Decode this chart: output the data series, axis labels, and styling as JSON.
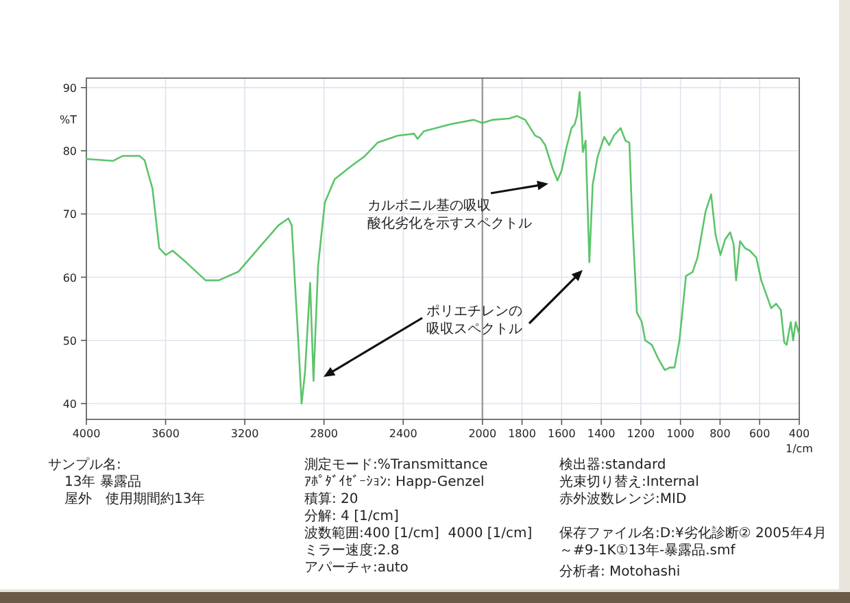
{
  "chart_data": {
    "type": "line",
    "xlabel": "1/cm",
    "ylabel": "%T",
    "grid": true,
    "xlim": [
      4000,
      400
    ],
    "xticks": [
      4000,
      3600,
      3200,
      2800,
      2400,
      2000,
      1800,
      1600,
      1400,
      1200,
      1000,
      800,
      600,
      400
    ],
    "ylim": [
      37.5,
      91.5
    ],
    "yticks": [
      40,
      50,
      60,
      70,
      80,
      90
    ],
    "ref_lines": [
      {
        "axis": "x",
        "value": 2000,
        "color": "#9a9a9a"
      }
    ],
    "series": [
      {
        "color": "#5cc46a",
        "x": [
          4000,
          3866,
          3816,
          3732,
          3706,
          3666,
          3632,
          3599,
          3565,
          3498,
          3398,
          3331,
          3231,
          3130,
          3030,
          2980,
          2963,
          2930,
          2913,
          2896,
          2870,
          2853,
          2830,
          2796,
          2746,
          2662,
          2596,
          2529,
          2428,
          2345,
          2328,
          2295,
          2161,
          2044,
          2000,
          1948,
          1866,
          1825,
          1784,
          1734,
          1707,
          1683,
          1650,
          1621,
          1600,
          1575,
          1550,
          1534,
          1522,
          1509,
          1501,
          1493,
          1479,
          1460,
          1443,
          1418,
          1385,
          1360,
          1336,
          1302,
          1278,
          1258,
          1245,
          1220,
          1195,
          1178,
          1145,
          1112,
          1079,
          1055,
          1030,
          1005,
          972,
          939,
          914,
          873,
          845,
          823,
          798,
          774,
          749,
          732,
          719,
          699,
          674,
          650,
          617,
          592,
          567,
          542,
          517,
          493,
          476,
          464,
          443,
          431,
          418,
          402
        ],
        "values": [
          78.7,
          78.4,
          79.2,
          79.2,
          78.5,
          74,
          64.6,
          63.5,
          64.2,
          62.4,
          59.5,
          59.5,
          60.9,
          64.6,
          68.2,
          69.3,
          68.2,
          50,
          40,
          44.9,
          59.1,
          43.6,
          61.7,
          71.8,
          75.5,
          77.6,
          79.1,
          81.3,
          82.4,
          82.7,
          81.9,
          83.1,
          84.2,
          84.9,
          84.4,
          84.9,
          85.1,
          85.5,
          84.9,
          82.4,
          82,
          80.9,
          77.6,
          75.3,
          76.9,
          80.6,
          83.6,
          84.2,
          85.6,
          89.3,
          84.9,
          79.8,
          81.6,
          62.4,
          74.7,
          79.1,
          82.2,
          80.9,
          82.4,
          83.6,
          81.6,
          81.3,
          70.4,
          54.4,
          52.9,
          50,
          49.3,
          47.1,
          45.3,
          45.7,
          45.7,
          50,
          60.2,
          60.8,
          63.1,
          70.4,
          73.1,
          66.7,
          63.5,
          66,
          67.1,
          65.3,
          59.5,
          65.7,
          64.6,
          64.2,
          63.1,
          59.5,
          57.3,
          55.1,
          55.8,
          54.8,
          49.7,
          49.3,
          52.9,
          50,
          52.9,
          51.1
        ]
      }
    ],
    "annotations": [
      "カルボニル基の吸収",
      "酸化劣化を示すスペクトル",
      "ポリエチレンの",
      "吸収スペクトル",
      "サンプル名:",
      "13年 暴露品",
      "屋外　使用期間約13年",
      "測定モード:%Transmittance",
      "ｱﾎﾟﾀﾞｲｾﾞｰｼｮﾝ: Happ-Genzel",
      "積算: 20",
      "分解: 4 [1/cm]",
      "波数範囲:400 [1/cm]  4000 [1/cm]",
      "ミラー速度:2.8",
      "アパーチャ:auto",
      "検出器:standard",
      "光束切り替え:Internal",
      "赤外波数レンジ:MID",
      "保存ファイル名:D:¥劣化診断② 2005年4月～#9-1K①13年-暴露品.smf",
      "分析者: Motohashi"
    ]
  }
}
